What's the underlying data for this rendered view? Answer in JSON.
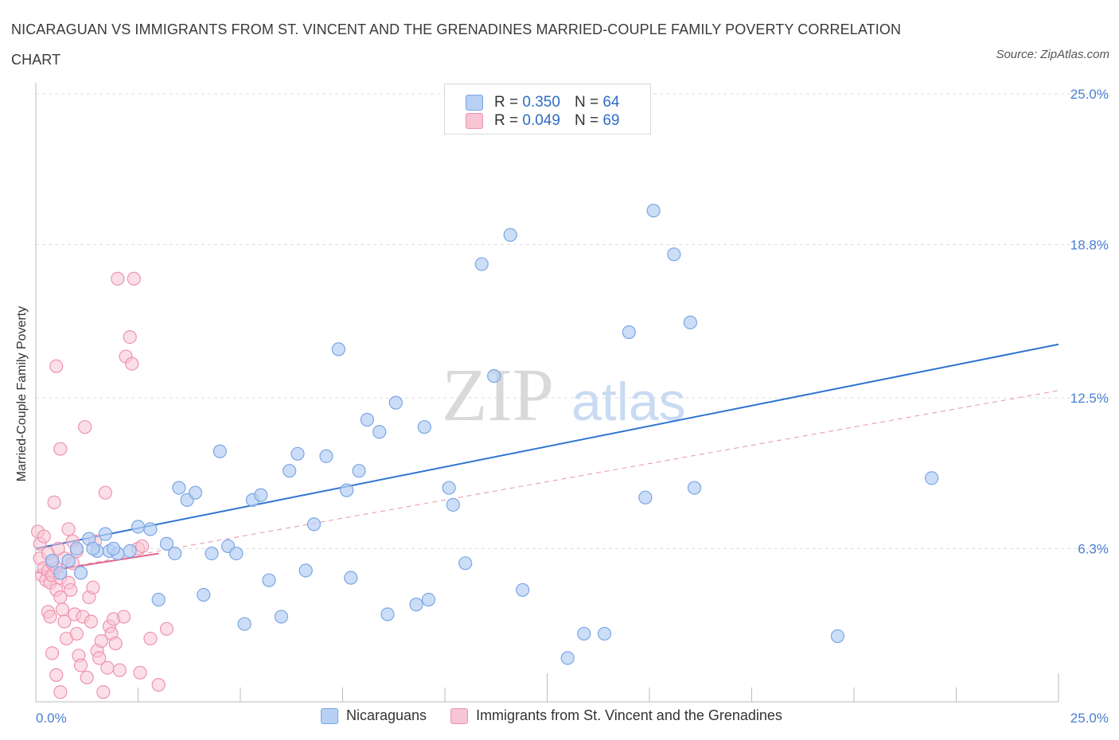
{
  "title": "NICARAGUAN VS IMMIGRANTS FROM ST. VINCENT AND THE GRENADINES MARRIED-COUPLE FAMILY POVERTY CORRELATION CHART",
  "source": "Source: ZipAtlas.com",
  "watermark": {
    "zip": "ZIP",
    "atlas": "atlas"
  },
  "legend": {
    "rows": [
      {
        "r_label": "R =",
        "r_value": "0.350",
        "n_label": "N =",
        "n_value": "64"
      },
      {
        "r_label": "R =",
        "r_value": "0.049",
        "n_label": "N =",
        "n_value": "69"
      }
    ]
  },
  "bottom_legend": {
    "series1": "Nicaraguans",
    "series2": "Immigrants from St. Vincent and the Grenadines"
  },
  "chart_data": {
    "type": "scatter",
    "title": "NICARAGUAN VS IMMIGRANTS FROM ST. VINCENT AND THE GRENADINES MARRIED-COUPLE FAMILY POVERTY CORRELATION CHART",
    "ylabel": "Married-Couple Family Poverty",
    "xlabel": "",
    "xlim": [
      0,
      25
    ],
    "ylim": [
      0,
      25
    ],
    "x_tick_labels": [
      "0.0%",
      "25.0%"
    ],
    "y_tick_labels": [
      {
        "value": 25.0,
        "label": "25.0%"
      },
      {
        "value": 18.8,
        "label": "18.8%"
      },
      {
        "value": 12.5,
        "label": "12.5%"
      },
      {
        "value": 6.3,
        "label": "6.3%"
      }
    ],
    "colors": {
      "blue_fill": "#b7d0f3",
      "blue_stroke": "#7aa6e4",
      "blue_line": "#2f74d0",
      "pink_fill": "#f7c5d4",
      "pink_stroke": "#ee93b0",
      "pink_line": "#e0658e"
    },
    "series": [
      {
        "name": "Nicaraguans",
        "color": "blue",
        "trend": {
          "x0": 0.0,
          "y0": 6.3,
          "x1": 25.0,
          "y1": 14.7,
          "style": "solid"
        },
        "points": [
          [
            0.4,
            5.8
          ],
          [
            0.6,
            5.3
          ],
          [
            0.8,
            5.8
          ],
          [
            1.0,
            6.3
          ],
          [
            1.1,
            5.3
          ],
          [
            1.3,
            6.7
          ],
          [
            1.5,
            6.2
          ],
          [
            1.4,
            6.3
          ],
          [
            1.7,
            6.9
          ],
          [
            1.8,
            6.2
          ],
          [
            2.0,
            6.1
          ],
          [
            1.9,
            6.3
          ],
          [
            2.3,
            6.2
          ],
          [
            2.5,
            7.2
          ],
          [
            2.8,
            7.1
          ],
          [
            3.0,
            4.2
          ],
          [
            3.2,
            6.5
          ],
          [
            3.4,
            6.1
          ],
          [
            3.5,
            8.8
          ],
          [
            3.7,
            8.3
          ],
          [
            3.9,
            8.6
          ],
          [
            4.1,
            4.4
          ],
          [
            4.3,
            6.1
          ],
          [
            4.5,
            10.3
          ],
          [
            4.7,
            6.4
          ],
          [
            4.9,
            6.1
          ],
          [
            5.1,
            3.2
          ],
          [
            5.3,
            8.3
          ],
          [
            5.5,
            8.5
          ],
          [
            5.7,
            5.0
          ],
          [
            6.0,
            3.5
          ],
          [
            6.2,
            9.5
          ],
          [
            6.4,
            10.2
          ],
          [
            6.6,
            5.4
          ],
          [
            6.8,
            7.3
          ],
          [
            7.1,
            10.1
          ],
          [
            7.4,
            14.5
          ],
          [
            7.6,
            8.7
          ],
          [
            7.7,
            5.1
          ],
          [
            7.9,
            9.5
          ],
          [
            8.1,
            11.6
          ],
          [
            8.4,
            11.1
          ],
          [
            8.6,
            3.6
          ],
          [
            8.8,
            12.3
          ],
          [
            9.3,
            4.0
          ],
          [
            9.5,
            11.3
          ],
          [
            9.6,
            4.2
          ],
          [
            10.1,
            8.8
          ],
          [
            10.2,
            8.1
          ],
          [
            10.5,
            5.7
          ],
          [
            10.9,
            18.0
          ],
          [
            11.2,
            13.4
          ],
          [
            11.6,
            19.2
          ],
          [
            11.9,
            4.6
          ],
          [
            13.0,
            1.8
          ],
          [
            13.4,
            2.8
          ],
          [
            13.9,
            2.8
          ],
          [
            14.5,
            15.2
          ],
          [
            14.9,
            8.4
          ],
          [
            15.1,
            20.2
          ],
          [
            15.6,
            18.4
          ],
          [
            16.0,
            15.6
          ],
          [
            16.1,
            8.8
          ],
          [
            19.6,
            2.7
          ],
          [
            21.9,
            9.2
          ]
        ]
      },
      {
        "name": "Immigrants from St. Vincent and the Grenadines",
        "color": "pink",
        "trend": {
          "x0": 0.0,
          "y0": 5.3,
          "x1": 3.0,
          "y1": 6.1,
          "style": "solid",
          "ext_x1": 25.0,
          "ext_y1": 12.8,
          "ext_style": "dashed"
        },
        "points": [
          [
            0.05,
            7.0
          ],
          [
            0.1,
            6.5
          ],
          [
            0.1,
            5.9
          ],
          [
            0.15,
            5.2
          ],
          [
            0.2,
            6.8
          ],
          [
            0.2,
            5.5
          ],
          [
            0.25,
            5.0
          ],
          [
            0.3,
            6.1
          ],
          [
            0.3,
            5.4
          ],
          [
            0.35,
            4.9
          ],
          [
            0.4,
            5.7
          ],
          [
            0.4,
            5.2
          ],
          [
            0.45,
            8.2
          ],
          [
            0.5,
            5.5
          ],
          [
            0.5,
            4.6
          ],
          [
            0.55,
            6.3
          ],
          [
            0.6,
            5.1
          ],
          [
            0.6,
            4.3
          ],
          [
            0.65,
            3.8
          ],
          [
            0.7,
            5.9
          ],
          [
            0.7,
            3.3
          ],
          [
            0.75,
            2.6
          ],
          [
            0.8,
            7.1
          ],
          [
            0.8,
            4.9
          ],
          [
            0.85,
            4.6
          ],
          [
            0.9,
            6.6
          ],
          [
            0.9,
            5.7
          ],
          [
            0.95,
            3.6
          ],
          [
            1.0,
            6.2
          ],
          [
            1.0,
            2.8
          ],
          [
            1.05,
            1.9
          ],
          [
            1.1,
            1.5
          ],
          [
            1.15,
            3.5
          ],
          [
            1.2,
            11.3
          ],
          [
            1.25,
            1.0
          ],
          [
            1.3,
            4.3
          ],
          [
            1.35,
            3.3
          ],
          [
            1.4,
            4.7
          ],
          [
            1.45,
            6.6
          ],
          [
            1.5,
            2.1
          ],
          [
            1.55,
            1.8
          ],
          [
            1.6,
            2.5
          ],
          [
            1.65,
            0.4
          ],
          [
            1.7,
            8.6
          ],
          [
            1.75,
            1.4
          ],
          [
            1.8,
            3.1
          ],
          [
            1.85,
            2.8
          ],
          [
            1.9,
            3.4
          ],
          [
            1.95,
            2.4
          ],
          [
            2.0,
            17.4
          ],
          [
            2.05,
            1.3
          ],
          [
            2.15,
            3.5
          ],
          [
            2.2,
            14.2
          ],
          [
            2.3,
            15.0
          ],
          [
            2.35,
            13.9
          ],
          [
            2.4,
            17.4
          ],
          [
            2.5,
            6.3
          ],
          [
            2.55,
            1.2
          ],
          [
            2.6,
            6.4
          ],
          [
            2.8,
            2.6
          ],
          [
            3.0,
            0.7
          ],
          [
            3.2,
            3.0
          ],
          [
            0.3,
            3.7
          ],
          [
            0.35,
            3.5
          ],
          [
            0.5,
            13.8
          ],
          [
            0.6,
            10.4
          ],
          [
            0.4,
            2.0
          ],
          [
            0.5,
            1.1
          ],
          [
            0.6,
            0.4
          ]
        ]
      }
    ]
  }
}
